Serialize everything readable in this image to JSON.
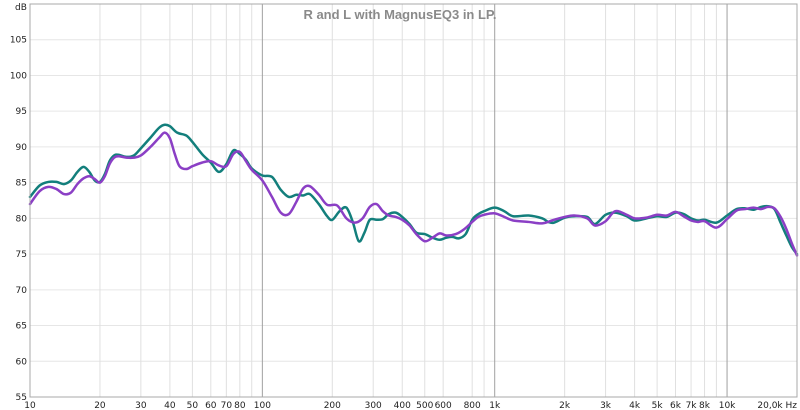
{
  "chart_data": {
    "type": "line",
    "title": "R and L with MagnusEQ3 in LP.",
    "ylabel": "dB",
    "xlabel": "",
    "x_unit_label": "20,0k Hz",
    "x_scale": "log",
    "xlim": [
      10,
      20000
    ],
    "ylim": [
      55,
      110
    ],
    "grid": true,
    "y_ticks": [
      55,
      60,
      65,
      70,
      75,
      80,
      85,
      90,
      95,
      100,
      105
    ],
    "x_ticks": [
      {
        "value": 10,
        "label": "10"
      },
      {
        "value": 20,
        "label": "20"
      },
      {
        "value": 30,
        "label": "30"
      },
      {
        "value": 40,
        "label": "40"
      },
      {
        "value": 50,
        "label": "50"
      },
      {
        "value": 60,
        "label": "60"
      },
      {
        "value": 70,
        "label": "70"
      },
      {
        "value": 80,
        "label": "80"
      },
      {
        "value": 100,
        "label": "100"
      },
      {
        "value": 200,
        "label": "200"
      },
      {
        "value": 300,
        "label": "300"
      },
      {
        "value": 400,
        "label": "400"
      },
      {
        "value": 500,
        "label": "500"
      },
      {
        "value": 600,
        "label": "600"
      },
      {
        "value": 800,
        "label": "800"
      },
      {
        "value": 1000,
        "label": "1k"
      },
      {
        "value": 2000,
        "label": "2k"
      },
      {
        "value": 3000,
        "label": "3k"
      },
      {
        "value": 4000,
        "label": "4k"
      },
      {
        "value": 5000,
        "label": "5k"
      },
      {
        "value": 6000,
        "label": "6k"
      },
      {
        "value": 7000,
        "label": "7k"
      },
      {
        "value": 8000,
        "label": "8k"
      },
      {
        "value": 10000,
        "label": "10k"
      }
    ],
    "x_grid_minor": [
      90,
      900,
      9000
    ],
    "x_grid_major": [
      10,
      100,
      1000,
      10000
    ],
    "series": [
      {
        "color": "#137f7c",
        "points": [
          [
            10,
            83
          ],
          [
            11,
            84.6
          ],
          [
            12,
            85.1
          ],
          [
            13,
            85.1
          ],
          [
            14,
            84.8
          ],
          [
            15,
            85.3
          ],
          [
            16,
            86.5
          ],
          [
            17,
            87.2
          ],
          [
            18,
            86.5
          ],
          [
            19,
            85.3
          ],
          [
            20,
            85.1
          ],
          [
            21,
            86.2
          ],
          [
            22,
            88.0
          ],
          [
            23,
            88.8
          ],
          [
            24,
            88.9
          ],
          [
            26,
            88.6
          ],
          [
            28,
            88.8
          ],
          [
            30,
            89.8
          ],
          [
            33,
            91.3
          ],
          [
            36,
            92.7
          ],
          [
            38,
            93.1
          ],
          [
            40,
            92.9
          ],
          [
            43,
            92.0
          ],
          [
            47,
            91.6
          ],
          [
            50,
            90.7
          ],
          [
            55,
            89.0
          ],
          [
            60,
            87.8
          ],
          [
            65,
            86.5
          ],
          [
            70,
            87.6
          ],
          [
            75,
            89.5
          ],
          [
            80,
            89.0
          ],
          [
            85,
            88.2
          ],
          [
            90,
            87.0
          ],
          [
            100,
            86.0
          ],
          [
            110,
            85.8
          ],
          [
            120,
            84.0
          ],
          [
            130,
            83.0
          ],
          [
            140,
            83.3
          ],
          [
            150,
            83.2
          ],
          [
            160,
            83.4
          ],
          [
            175,
            82.0
          ],
          [
            190,
            80.3
          ],
          [
            200,
            79.8
          ],
          [
            215,
            81.0
          ],
          [
            230,
            81.5
          ],
          [
            245,
            79.5
          ],
          [
            260,
            76.8
          ],
          [
            275,
            78.0
          ],
          [
            290,
            79.8
          ],
          [
            310,
            79.8
          ],
          [
            330,
            79.9
          ],
          [
            350,
            80.6
          ],
          [
            375,
            80.8
          ],
          [
            400,
            80.2
          ],
          [
            430,
            79.2
          ],
          [
            460,
            78.0
          ],
          [
            500,
            77.8
          ],
          [
            540,
            77.3
          ],
          [
            580,
            77.0
          ],
          [
            620,
            77.3
          ],
          [
            660,
            77.4
          ],
          [
            700,
            77.2
          ],
          [
            750,
            77.8
          ],
          [
            800,
            79.8
          ],
          [
            850,
            80.6
          ],
          [
            900,
            81.0
          ],
          [
            1000,
            81.5
          ],
          [
            1100,
            81.0
          ],
          [
            1200,
            80.3
          ],
          [
            1400,
            80.4
          ],
          [
            1600,
            80.0
          ],
          [
            1700,
            79.5
          ],
          [
            1800,
            79.4
          ],
          [
            2000,
            80.1
          ],
          [
            2200,
            80.3
          ],
          [
            2500,
            80.2
          ],
          [
            2700,
            79.2
          ],
          [
            3000,
            80.5
          ],
          [
            3300,
            80.8
          ],
          [
            3700,
            80.3
          ],
          [
            4000,
            79.7
          ],
          [
            4500,
            80.0
          ],
          [
            5000,
            80.3
          ],
          [
            5500,
            80.2
          ],
          [
            6000,
            80.8
          ],
          [
            6500,
            80.6
          ],
          [
            7000,
            80.0
          ],
          [
            7500,
            79.7
          ],
          [
            8000,
            79.8
          ],
          [
            9000,
            79.4
          ],
          [
            10000,
            80.4
          ],
          [
            11000,
            81.3
          ],
          [
            12000,
            81.4
          ],
          [
            13000,
            81.2
          ],
          [
            14000,
            81.6
          ],
          [
            15000,
            81.7
          ],
          [
            16000,
            81.3
          ],
          [
            17000,
            79.4
          ],
          [
            18000,
            77.6
          ],
          [
            19000,
            76.0
          ],
          [
            20000,
            75.0
          ]
        ]
      },
      {
        "color": "#8b3fc5",
        "points": [
          [
            10,
            82
          ],
          [
            11,
            83.8
          ],
          [
            12,
            84.4
          ],
          [
            13,
            84.1
          ],
          [
            14,
            83.4
          ],
          [
            15,
            83.6
          ],
          [
            16,
            84.8
          ],
          [
            17,
            85.6
          ],
          [
            18,
            85.9
          ],
          [
            19,
            85.5
          ],
          [
            20,
            85.0
          ],
          [
            21,
            85.9
          ],
          [
            22,
            87.6
          ],
          [
            23,
            88.5
          ],
          [
            24,
            88.7
          ],
          [
            26,
            88.5
          ],
          [
            28,
            88.5
          ],
          [
            30,
            88.8
          ],
          [
            33,
            90.0
          ],
          [
            36,
            91.3
          ],
          [
            38,
            92.0
          ],
          [
            40,
            91.2
          ],
          [
            42,
            89.0
          ],
          [
            44,
            87.3
          ],
          [
            47,
            86.9
          ],
          [
            50,
            87.3
          ],
          [
            55,
            87.8
          ],
          [
            60,
            88.0
          ],
          [
            65,
            87.4
          ],
          [
            70,
            87.3
          ],
          [
            75,
            89.0
          ],
          [
            80,
            89.3
          ],
          [
            85,
            88.0
          ],
          [
            90,
            86.8
          ],
          [
            100,
            85.3
          ],
          [
            110,
            83.0
          ],
          [
            120,
            80.8
          ],
          [
            130,
            80.6
          ],
          [
            140,
            82.3
          ],
          [
            150,
            84.2
          ],
          [
            160,
            84.5
          ],
          [
            175,
            83.3
          ],
          [
            190,
            81.9
          ],
          [
            210,
            81.8
          ],
          [
            230,
            80.0
          ],
          [
            250,
            79.4
          ],
          [
            270,
            80.0
          ],
          [
            290,
            81.6
          ],
          [
            310,
            82.0
          ],
          [
            330,
            81.0
          ],
          [
            350,
            80.4
          ],
          [
            375,
            80.2
          ],
          [
            400,
            79.8
          ],
          [
            430,
            79.0
          ],
          [
            460,
            77.8
          ],
          [
            500,
            76.8
          ],
          [
            540,
            77.3
          ],
          [
            580,
            77.9
          ],
          [
            620,
            77.6
          ],
          [
            680,
            77.8
          ],
          [
            740,
            78.5
          ],
          [
            800,
            79.5
          ],
          [
            850,
            80.2
          ],
          [
            900,
            80.5
          ],
          [
            1000,
            80.7
          ],
          [
            1100,
            80.2
          ],
          [
            1200,
            79.7
          ],
          [
            1400,
            79.5
          ],
          [
            1600,
            79.3
          ],
          [
            1800,
            79.8
          ],
          [
            2000,
            80.2
          ],
          [
            2200,
            80.4
          ],
          [
            2500,
            80.0
          ],
          [
            2700,
            79.0
          ],
          [
            3000,
            79.6
          ],
          [
            3300,
            81.0
          ],
          [
            3700,
            80.5
          ],
          [
            4000,
            80.0
          ],
          [
            4500,
            80.1
          ],
          [
            5000,
            80.5
          ],
          [
            5500,
            80.4
          ],
          [
            6000,
            80.9
          ],
          [
            6500,
            80.3
          ],
          [
            7000,
            79.7
          ],
          [
            7500,
            79.5
          ],
          [
            8000,
            79.6
          ],
          [
            9000,
            78.7
          ],
          [
            10000,
            79.9
          ],
          [
            11000,
            81.1
          ],
          [
            12000,
            81.3
          ],
          [
            13000,
            81.5
          ],
          [
            14000,
            81.3
          ],
          [
            15000,
            81.6
          ],
          [
            16000,
            81.4
          ],
          [
            17000,
            80.2
          ],
          [
            18000,
            78.5
          ],
          [
            19000,
            76.5
          ],
          [
            20000,
            74.8
          ]
        ]
      }
    ]
  }
}
